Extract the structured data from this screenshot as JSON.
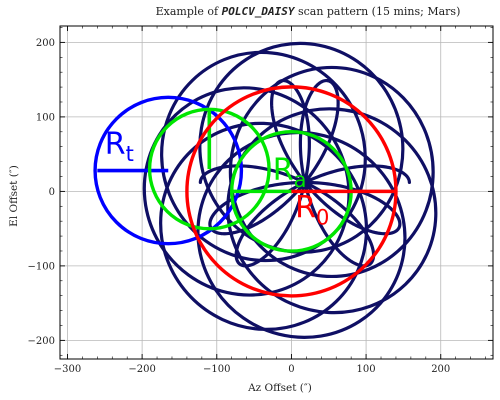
{
  "chart_data": {
    "type": "line",
    "title_prefix": "Example of ",
    "title_mode": "POLCV_DAISY",
    "title_suffix": " scan pattern (15 mins; Mars)",
    "xlabel": "Az Offset (″)",
    "ylabel": "El Offset (″)",
    "xlim": [
      -310,
      270
    ],
    "ylim": [
      -225,
      222
    ],
    "xticks": [
      -300,
      -200,
      -100,
      0,
      100,
      200
    ],
    "yticks": [
      -200,
      -100,
      0,
      100,
      200
    ],
    "xtick_labels": [
      "−300",
      "−200",
      "−100",
      "0",
      "100",
      "200"
    ],
    "ytick_labels": [
      "−200",
      "−100",
      "0",
      "100",
      "200"
    ],
    "grid": true,
    "series": [
      {
        "kind": "daisy-scan",
        "color": "#0f0f64",
        "circle_radius": 140,
        "center_orbit_radius": 60,
        "petals": 7
      }
    ],
    "annotations": [
      {
        "label_main": "R",
        "label_sub": "t",
        "color": "#0000ff",
        "center": [
          -165,
          28
        ],
        "radius": 98,
        "radius_line_to": [
          -260,
          28
        ],
        "label_at": [
          -250,
          50
        ]
      },
      {
        "label_main": "R",
        "label_sub": "a",
        "color": "#00e600",
        "center": [
          0,
          0
        ],
        "radius": 80,
        "radius_line_to": [
          -80,
          0
        ],
        "extra_circle": {
          "center": [
            -110,
            30
          ],
          "radius": 80,
          "vertical_line": [
            [
              -110,
              30
            ],
            [
              -110,
              110
            ]
          ]
        },
        "label_at": [
          -25,
          15
        ]
      },
      {
        "label_main": "R",
        "label_sub": "0",
        "color": "#ff0000",
        "center": [
          0,
          0
        ],
        "radius": 140,
        "radius_line_to": [
          140,
          0
        ],
        "label_at": [
          5,
          -35
        ]
      }
    ]
  }
}
